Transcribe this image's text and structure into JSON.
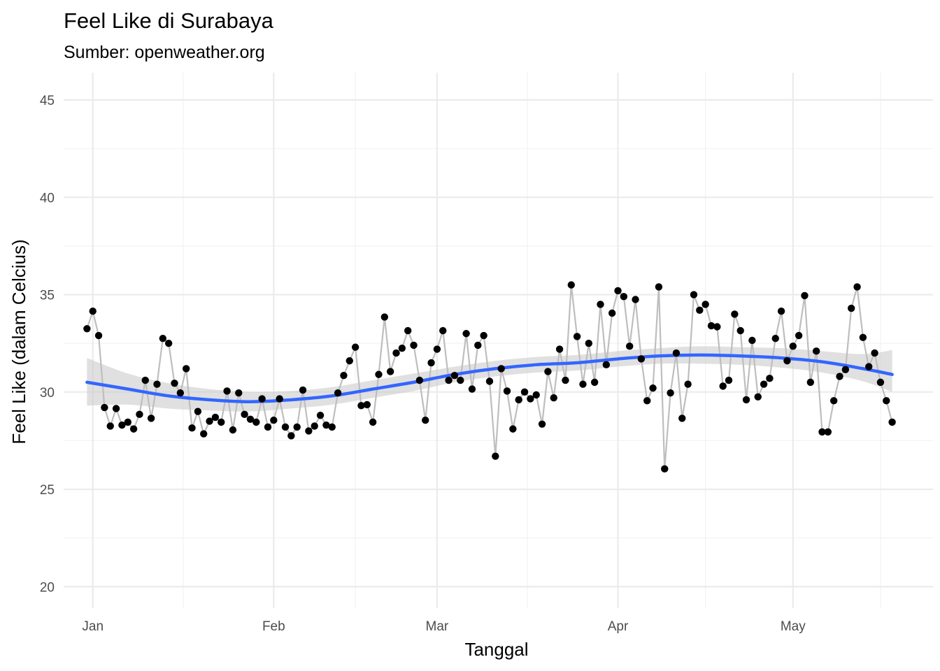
{
  "chart_data": {
    "type": "line",
    "title": "Feel Like di Surabaya",
    "subtitle": "Sumber: openweather.org",
    "xlabel": "Tanggal",
    "ylabel": "Feel Like (dalam Celcius)",
    "x_ticks": [
      {
        "date": "2021-01-01",
        "label": "Jan"
      },
      {
        "date": "2021-02-01",
        "label": "Feb"
      },
      {
        "date": "2021-03-01",
        "label": "Mar"
      },
      {
        "date": "2021-04-01",
        "label": "Apr"
      },
      {
        "date": "2021-05-01",
        "label": "May"
      }
    ],
    "xlim": [
      "2020-12-27",
      "2021-05-25"
    ],
    "ylim": [
      18.9,
      46.4
    ],
    "y_ticks": [
      20,
      25,
      30,
      35,
      40,
      45
    ],
    "grid": true,
    "series": [
      {
        "color": "#bebebe",
        "markers": "#000000",
        "points": [
          [
            "2020-12-31",
            33.25
          ],
          [
            "2021-01-01",
            34.15
          ],
          [
            "2021-01-02",
            32.9
          ],
          [
            "2021-01-03",
            29.2
          ],
          [
            "2021-01-04",
            28.25
          ],
          [
            "2021-01-05",
            29.15
          ],
          [
            "2021-01-06",
            28.3
          ],
          [
            "2021-01-07",
            28.45
          ],
          [
            "2021-01-08",
            28.1
          ],
          [
            "2021-01-09",
            28.85
          ],
          [
            "2021-01-10",
            30.6
          ],
          [
            "2021-01-11",
            28.65
          ],
          [
            "2021-01-12",
            30.4
          ],
          [
            "2021-01-13",
            32.75
          ],
          [
            "2021-01-14",
            32.5
          ],
          [
            "2021-01-15",
            30.45
          ],
          [
            "2021-01-16",
            29.95
          ],
          [
            "2021-01-17",
            31.2
          ],
          [
            "2021-01-18",
            28.15
          ],
          [
            "2021-01-19",
            29.0
          ],
          [
            "2021-01-20",
            27.85
          ],
          [
            "2021-01-21",
            28.5
          ],
          [
            "2021-01-22",
            28.7
          ],
          [
            "2021-01-23",
            28.45
          ],
          [
            "2021-01-24",
            30.05
          ],
          [
            "2021-01-25",
            28.05
          ],
          [
            "2021-01-26",
            29.95
          ],
          [
            "2021-01-27",
            28.85
          ],
          [
            "2021-01-28",
            28.6
          ],
          [
            "2021-01-29",
            28.45
          ],
          [
            "2021-01-30",
            29.65
          ],
          [
            "2021-01-31",
            28.2
          ],
          [
            "2021-02-01",
            28.55
          ],
          [
            "2021-02-02",
            29.65
          ],
          [
            "2021-02-03",
            28.2
          ],
          [
            "2021-02-04",
            27.75
          ],
          [
            "2021-02-05",
            28.2
          ],
          [
            "2021-02-06",
            30.1
          ],
          [
            "2021-02-07",
            28.0
          ],
          [
            "2021-02-08",
            28.25
          ],
          [
            "2021-02-09",
            28.8
          ],
          [
            "2021-02-10",
            28.3
          ],
          [
            "2021-02-11",
            28.2
          ],
          [
            "2021-02-12",
            29.95
          ],
          [
            "2021-02-13",
            30.85
          ],
          [
            "2021-02-14",
            31.6
          ],
          [
            "2021-02-15",
            32.3
          ],
          [
            "2021-02-16",
            29.3
          ],
          [
            "2021-02-17",
            29.35
          ],
          [
            "2021-02-18",
            28.45
          ],
          [
            "2021-02-19",
            30.9
          ],
          [
            "2021-02-20",
            33.85
          ],
          [
            "2021-02-21",
            31.05
          ],
          [
            "2021-02-22",
            32.0
          ],
          [
            "2021-02-23",
            32.25
          ],
          [
            "2021-02-24",
            33.15
          ],
          [
            "2021-02-25",
            32.4
          ],
          [
            "2021-02-26",
            30.6
          ],
          [
            "2021-02-27",
            28.55
          ],
          [
            "2021-02-28",
            31.5
          ],
          [
            "2021-03-01",
            32.2
          ],
          [
            "2021-03-02",
            33.15
          ],
          [
            "2021-03-03",
            30.6
          ],
          [
            "2021-03-04",
            30.85
          ],
          [
            "2021-03-05",
            30.6
          ],
          [
            "2021-03-06",
            33.0
          ],
          [
            "2021-03-07",
            30.15
          ],
          [
            "2021-03-08",
            32.4
          ],
          [
            "2021-03-09",
            32.9
          ],
          [
            "2021-03-10",
            30.55
          ],
          [
            "2021-03-11",
            26.7
          ],
          [
            "2021-03-12",
            31.2
          ],
          [
            "2021-03-13",
            30.05
          ],
          [
            "2021-03-14",
            28.1
          ],
          [
            "2021-03-15",
            29.6
          ],
          [
            "2021-03-16",
            30.0
          ],
          [
            "2021-03-17",
            29.65
          ],
          [
            "2021-03-18",
            29.85
          ],
          [
            "2021-03-19",
            28.35
          ],
          [
            "2021-03-20",
            31.05
          ],
          [
            "2021-03-21",
            29.7
          ],
          [
            "2021-03-22",
            32.2
          ],
          [
            "2021-03-23",
            30.6
          ],
          [
            "2021-03-24",
            35.5
          ],
          [
            "2021-03-25",
            32.85
          ],
          [
            "2021-03-26",
            30.4
          ],
          [
            "2021-03-27",
            32.5
          ],
          [
            "2021-03-28",
            30.5
          ],
          [
            "2021-03-29",
            34.5
          ],
          [
            "2021-03-30",
            31.4
          ],
          [
            "2021-03-31",
            34.05
          ],
          [
            "2021-04-01",
            35.2
          ],
          [
            "2021-04-02",
            34.9
          ],
          [
            "2021-04-03",
            32.35
          ],
          [
            "2021-04-04",
            34.75
          ],
          [
            "2021-04-05",
            31.7
          ],
          [
            "2021-04-06",
            29.55
          ],
          [
            "2021-04-07",
            30.2
          ],
          [
            "2021-04-08",
            35.4
          ],
          [
            "2021-04-09",
            26.05
          ],
          [
            "2021-04-10",
            29.95
          ],
          [
            "2021-04-11",
            32.0
          ],
          [
            "2021-04-12",
            28.65
          ],
          [
            "2021-04-13",
            30.4
          ],
          [
            "2021-04-14",
            35.0
          ],
          [
            "2021-04-15",
            34.2
          ],
          [
            "2021-04-16",
            34.5
          ],
          [
            "2021-04-17",
            33.4
          ],
          [
            "2021-04-18",
            33.35
          ],
          [
            "2021-04-19",
            30.3
          ],
          [
            "2021-04-20",
            30.6
          ],
          [
            "2021-04-21",
            34.0
          ],
          [
            "2021-04-22",
            33.15
          ],
          [
            "2021-04-23",
            29.6
          ],
          [
            "2021-04-24",
            32.65
          ],
          [
            "2021-04-25",
            29.75
          ],
          [
            "2021-04-26",
            30.4
          ],
          [
            "2021-04-27",
            30.7
          ],
          [
            "2021-04-28",
            32.75
          ],
          [
            "2021-04-29",
            34.15
          ],
          [
            "2021-04-30",
            31.6
          ],
          [
            "2021-05-01",
            32.35
          ],
          [
            "2021-05-02",
            32.9
          ],
          [
            "2021-05-03",
            34.95
          ],
          [
            "2021-05-04",
            30.5
          ],
          [
            "2021-05-05",
            32.1
          ],
          [
            "2021-05-06",
            27.95
          ],
          [
            "2021-05-07",
            27.95
          ],
          [
            "2021-05-08",
            29.55
          ],
          [
            "2021-05-09",
            30.8
          ],
          [
            "2021-05-10",
            31.15
          ],
          [
            "2021-05-11",
            34.3
          ],
          [
            "2021-05-12",
            35.4
          ],
          [
            "2021-05-13",
            32.8
          ],
          [
            "2021-05-14",
            31.3
          ],
          [
            "2021-05-15",
            32.0
          ],
          [
            "2021-05-16",
            30.5
          ],
          [
            "2021-05-17",
            29.55
          ],
          [
            "2021-05-18",
            28.45
          ]
        ]
      }
    ],
    "smooth": {
      "color": "#3366ff",
      "band_color": "#cccccc",
      "points": [
        [
          "2020-12-31",
          30.5,
          29.3,
          31.75
        ],
        [
          "2021-01-07",
          30.15,
          29.35,
          30.95
        ],
        [
          "2021-01-14",
          29.8,
          29.15,
          30.45
        ],
        [
          "2021-01-21",
          29.6,
          29.05,
          30.15
        ],
        [
          "2021-01-28",
          29.5,
          29.0,
          30.0
        ],
        [
          "2021-02-04",
          29.6,
          29.15,
          30.05
        ],
        [
          "2021-02-11",
          29.8,
          29.35,
          30.25
        ],
        [
          "2021-02-18",
          30.15,
          29.7,
          30.6
        ],
        [
          "2021-02-25",
          30.5,
          30.05,
          30.95
        ],
        [
          "2021-03-04",
          30.9,
          30.5,
          31.3
        ],
        [
          "2021-03-11",
          31.2,
          30.8,
          31.6
        ],
        [
          "2021-03-18",
          31.4,
          31.0,
          31.8
        ],
        [
          "2021-03-25",
          31.5,
          31.1,
          31.9
        ],
        [
          "2021-04-01",
          31.7,
          31.3,
          32.1
        ],
        [
          "2021-04-08",
          31.85,
          31.45,
          32.25
        ],
        [
          "2021-04-15",
          31.9,
          31.45,
          32.35
        ],
        [
          "2021-04-22",
          31.85,
          31.4,
          32.3
        ],
        [
          "2021-04-29",
          31.75,
          31.25,
          32.25
        ],
        [
          "2021-05-06",
          31.55,
          31.0,
          32.1
        ],
        [
          "2021-05-13",
          31.2,
          30.55,
          31.95
        ],
        [
          "2021-05-18",
          30.9,
          30.0,
          32.15
        ]
      ]
    }
  }
}
